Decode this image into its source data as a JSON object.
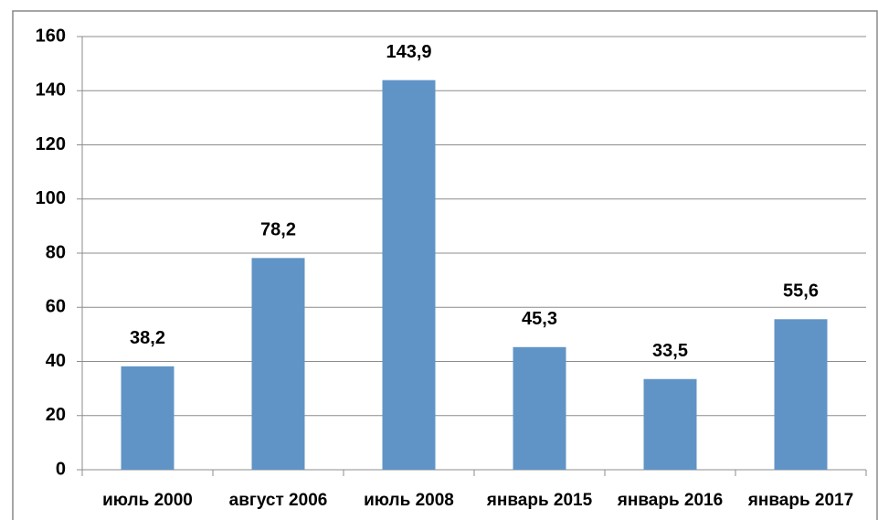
{
  "chart_data": {
    "type": "bar",
    "categories": [
      "июль 2000",
      "август 2006",
      "июль 2008",
      "январь 2015",
      "январь 2016",
      "январь 2017"
    ],
    "values": [
      38.2,
      78.2,
      143.9,
      45.3,
      33.5,
      55.6
    ],
    "value_labels": [
      "38,2",
      "78,2",
      "143,9",
      "45,3",
      "33,5",
      "55,6"
    ],
    "color": "#6194c6",
    "ylim": [
      0,
      160
    ],
    "yticks": [
      0,
      20,
      40,
      60,
      80,
      100,
      120,
      140,
      160
    ],
    "grid": true
  }
}
